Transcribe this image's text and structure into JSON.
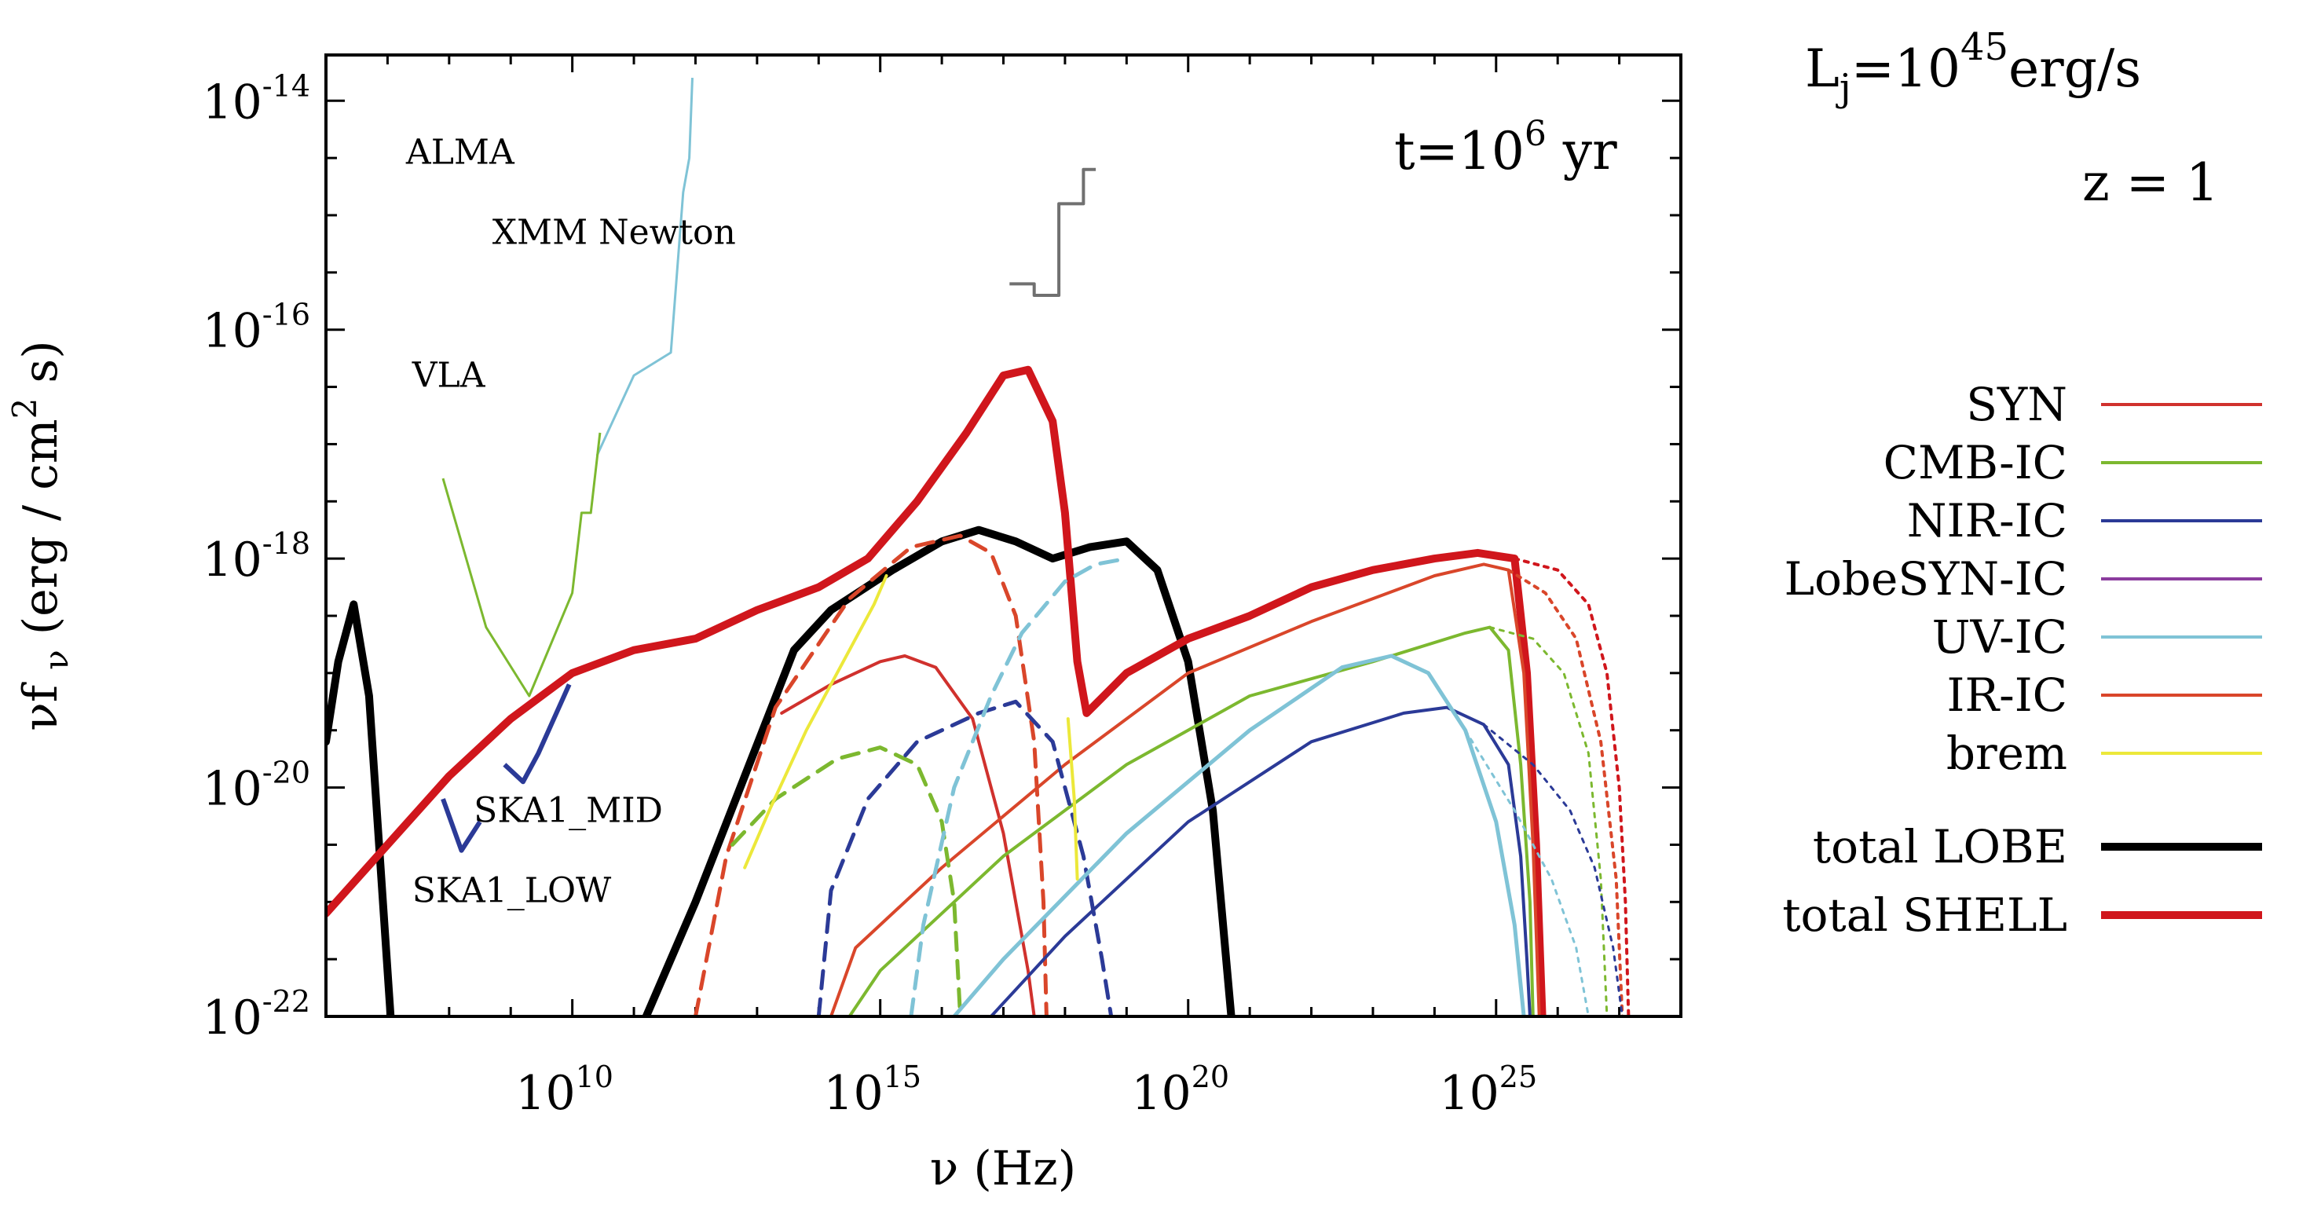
{
  "chart_data": {
    "type": "line",
    "xscale": "log",
    "yscale": "log",
    "xlabel": "ν (Hz)",
    "ylabel": "νf_ν (erg / cm^2 s)",
    "xlim_log10": [
      6,
      28
    ],
    "ylim_log10": [
      -22,
      -13.6
    ],
    "x_ticks": [
      {
        "log": 10,
        "base": "10",
        "exp": "10"
      },
      {
        "log": 15,
        "base": "10",
        "exp": "15"
      },
      {
        "log": 20,
        "base": "10",
        "exp": "20"
      },
      {
        "log": 25,
        "base": "10",
        "exp": "25"
      }
    ],
    "y_ticks": [
      {
        "log": -14,
        "base": "10",
        "exp": "-14"
      },
      {
        "log": -16,
        "base": "10",
        "exp": "-16"
      },
      {
        "log": -18,
        "base": "10",
        "exp": "-18"
      },
      {
        "log": -20,
        "base": "10",
        "exp": "-20"
      },
      {
        "log": -22,
        "base": "10",
        "exp": "-22"
      }
    ],
    "annotations": {
      "time": {
        "prefix": "t=10",
        "exp": "6",
        "suffix": " yr"
      },
      "luminosity": {
        "prefix": "L",
        "sub": "j",
        "mid": "=10",
        "exp": "45",
        "suffix": "erg/s"
      },
      "redshift": "z = 1"
    },
    "legend": [
      {
        "label": "SYN",
        "color": "#d0312d",
        "width": 4
      },
      {
        "label": "CMB-IC",
        "color": "#7cb82f",
        "width": 4
      },
      {
        "label": "NIR-IC",
        "color": "#2b3a97",
        "width": 4
      },
      {
        "label": "LobeSYN-IC",
        "color": "#8b3c9e",
        "width": 4
      },
      {
        "label": "UV-IC",
        "color": "#7fc3d6",
        "width": 4
      },
      {
        "label": "IR-IC",
        "color": "#d9462a",
        "width": 4
      },
      {
        "label": "brem",
        "color": "#ece83a",
        "width": 4
      },
      {
        "label": "total LOBE",
        "color": "#000000",
        "width": 10
      },
      {
        "label": "total SHELL",
        "color": "#d0161c",
        "width": 10
      }
    ],
    "instrument_labels": [
      {
        "text": "ALMA",
        "x": 7.3,
        "y": -14.55
      },
      {
        "text": "XMM Newton",
        "x": 8.7,
        "y": -15.25
      },
      {
        "text": "VLA",
        "x": 7.4,
        "y": -16.5
      },
      {
        "text": "SKA1_MID",
        "x": 8.4,
        "y": -20.3
      },
      {
        "text": "SKA1_LOW",
        "x": 7.4,
        "y": -21.0
      }
    ],
    "instruments": [
      {
        "name": "ALMA",
        "color": "#7fc3d6",
        "width": 3,
        "points": [
          [
            10.4,
            -17.1
          ],
          [
            11.0,
            -16.4
          ],
          [
            11.6,
            -16.2
          ],
          [
            11.8,
            -14.8
          ],
          [
            11.9,
            -14.5
          ],
          [
            11.95,
            -13.8
          ]
        ]
      },
      {
        "name": "VLA",
        "color": "#7cb82f",
        "width": 3,
        "points": [
          [
            7.9,
            -17.3
          ],
          [
            8.6,
            -18.6
          ],
          [
            9.3,
            -19.2
          ],
          [
            10.0,
            -18.3
          ],
          [
            10.15,
            -17.6
          ],
          [
            10.3,
            -17.6
          ],
          [
            10.45,
            -16.9
          ]
        ]
      },
      {
        "name": "XMM Newton",
        "color": "#707070",
        "width": 4,
        "points": [
          [
            17.1,
            -15.6
          ],
          [
            17.5,
            -15.6
          ],
          [
            17.5,
            -15.7
          ],
          [
            17.9,
            -15.7
          ],
          [
            17.9,
            -14.9
          ],
          [
            18.3,
            -14.9
          ],
          [
            18.3,
            -14.6
          ],
          [
            18.5,
            -14.6
          ]
        ]
      },
      {
        "name": "SKA1_MID",
        "color": "#2b3a97",
        "width": 6,
        "points": [
          [
            8.9,
            -19.8
          ],
          [
            9.2,
            -19.95
          ],
          [
            9.45,
            -19.7
          ],
          [
            9.95,
            -19.1
          ]
        ]
      },
      {
        "name": "SKA1_LOW",
        "color": "#2b3a97",
        "width": 6,
        "points": [
          [
            7.9,
            -20.1
          ],
          [
            8.2,
            -20.55
          ],
          [
            8.5,
            -20.3
          ]
        ]
      }
    ],
    "series": [
      {
        "name": "total LOBE low",
        "color": "#000000",
        "width": 10,
        "dash": "solid",
        "points": [
          [
            6.0,
            -19.6
          ],
          [
            6.2,
            -18.9
          ],
          [
            6.45,
            -18.4
          ],
          [
            6.7,
            -19.2
          ],
          [
            7.05,
            -22.0
          ]
        ]
      },
      {
        "name": "total LOBE",
        "color": "#000000",
        "width": 10,
        "dash": "solid",
        "points": [
          [
            11.2,
            -22.0
          ],
          [
            12.0,
            -21.0
          ],
          [
            12.8,
            -19.9
          ],
          [
            13.6,
            -18.8
          ],
          [
            14.2,
            -18.45
          ],
          [
            15.2,
            -18.1
          ],
          [
            16.0,
            -17.85
          ],
          [
            16.6,
            -17.75
          ],
          [
            17.2,
            -17.85
          ],
          [
            17.8,
            -18.0
          ],
          [
            18.4,
            -17.9
          ],
          [
            19.0,
            -17.85
          ],
          [
            19.5,
            -18.1
          ],
          [
            20.0,
            -18.9
          ],
          [
            20.4,
            -20.2
          ],
          [
            20.7,
            -22.0
          ]
        ]
      },
      {
        "name": "total SHELL",
        "color": "#d0161c",
        "width": 10,
        "dash": "solid",
        "points": [
          [
            6.0,
            -21.1
          ],
          [
            7.0,
            -20.5
          ],
          [
            8.0,
            -19.9
          ],
          [
            9.0,
            -19.4
          ],
          [
            10.0,
            -19.0
          ],
          [
            11.0,
            -18.8
          ],
          [
            12.0,
            -18.7
          ],
          [
            13.0,
            -18.45
          ],
          [
            14.0,
            -18.25
          ],
          [
            14.8,
            -18.0
          ],
          [
            15.6,
            -17.5
          ],
          [
            16.4,
            -16.9
          ],
          [
            17.0,
            -16.4
          ],
          [
            17.4,
            -16.35
          ],
          [
            17.8,
            -16.8
          ],
          [
            18.0,
            -17.6
          ],
          [
            18.2,
            -18.9
          ],
          [
            18.35,
            -19.35
          ],
          [
            19.0,
            -19.0
          ],
          [
            20.0,
            -18.7
          ],
          [
            21.0,
            -18.5
          ],
          [
            22.0,
            -18.25
          ],
          [
            23.0,
            -18.1
          ],
          [
            24.0,
            -18.0
          ],
          [
            24.7,
            -17.95
          ],
          [
            25.3,
            -18.0
          ],
          [
            25.5,
            -19.0
          ],
          [
            25.65,
            -20.5
          ],
          [
            25.75,
            -22.0
          ]
        ]
      },
      {
        "name": "total SHELL extrapolation",
        "color": "#d0161c",
        "width": 4,
        "dash": "dot",
        "points": [
          [
            25.3,
            -18.0
          ],
          [
            26.0,
            -18.1
          ],
          [
            26.5,
            -18.4
          ],
          [
            26.8,
            -19.0
          ],
          [
            27.0,
            -20.0
          ],
          [
            27.1,
            -21.0
          ],
          [
            27.15,
            -22.0
          ]
        ]
      },
      {
        "name": "SYN",
        "color": "#d0312d",
        "width": 4,
        "dash": "solid",
        "points": [
          [
            13.4,
            -19.35
          ],
          [
            14.2,
            -19.1
          ],
          [
            15.0,
            -18.9
          ],
          [
            15.4,
            -18.85
          ],
          [
            15.9,
            -18.95
          ],
          [
            16.5,
            -19.4
          ],
          [
            17.0,
            -20.4
          ],
          [
            17.4,
            -21.6
          ],
          [
            17.5,
            -22.0
          ]
        ]
      },
      {
        "name": "IR-IC high",
        "color": "#d9462a",
        "width": 4,
        "dash": "solid",
        "points": [
          [
            14.2,
            -22.0
          ],
          [
            14.6,
            -21.4
          ],
          [
            16.0,
            -20.7
          ],
          [
            18.0,
            -19.8
          ],
          [
            20.0,
            -19.0
          ],
          [
            22.0,
            -18.55
          ],
          [
            24.0,
            -18.15
          ],
          [
            24.8,
            -18.05
          ],
          [
            25.2,
            -18.1
          ],
          [
            25.45,
            -19.0
          ],
          [
            25.6,
            -20.5
          ],
          [
            25.7,
            -22.0
          ]
        ]
      },
      {
        "name": "IR-IC extrapolation",
        "color": "#d9462a",
        "width": 4,
        "dash": "dot",
        "points": [
          [
            25.2,
            -18.1
          ],
          [
            25.8,
            -18.3
          ],
          [
            26.3,
            -18.7
          ],
          [
            26.7,
            -19.6
          ],
          [
            26.95,
            -20.8
          ],
          [
            27.05,
            -22.0
          ]
        ]
      },
      {
        "name": "IR-IC low",
        "color": "#d9462a",
        "width": 5,
        "dash": "dash",
        "points": [
          [
            12.0,
            -22.0
          ],
          [
            12.5,
            -20.6
          ],
          [
            13.3,
            -19.3
          ],
          [
            14.5,
            -18.35
          ],
          [
            15.5,
            -17.9
          ],
          [
            16.3,
            -17.8
          ],
          [
            16.8,
            -17.95
          ],
          [
            17.2,
            -18.5
          ],
          [
            17.5,
            -19.6
          ],
          [
            17.65,
            -21.0
          ],
          [
            17.7,
            -22.0
          ]
        ]
      },
      {
        "name": "CMB-IC high",
        "color": "#7cb82f",
        "width": 4,
        "dash": "solid",
        "points": [
          [
            14.5,
            -22.0
          ],
          [
            15.0,
            -21.6
          ],
          [
            17.0,
            -20.6
          ],
          [
            19.0,
            -19.8
          ],
          [
            21.0,
            -19.2
          ],
          [
            23.0,
            -18.9
          ],
          [
            24.5,
            -18.65
          ],
          [
            24.9,
            -18.6
          ],
          [
            25.2,
            -18.8
          ],
          [
            25.4,
            -19.8
          ],
          [
            25.55,
            -21.0
          ],
          [
            25.6,
            -22.0
          ]
        ]
      },
      {
        "name": "CMB-IC extrapolation",
        "color": "#7cb82f",
        "width": 3,
        "dash": "dot",
        "points": [
          [
            24.9,
            -18.6
          ],
          [
            25.6,
            -18.7
          ],
          [
            26.1,
            -19.0
          ],
          [
            26.5,
            -19.7
          ],
          [
            26.7,
            -20.8
          ],
          [
            26.8,
            -22.0
          ]
        ]
      },
      {
        "name": "CMB-IC low",
        "color": "#7cb82f",
        "width": 5,
        "dash": "dash",
        "points": [
          [
            12.6,
            -20.5
          ],
          [
            13.3,
            -20.1
          ],
          [
            14.3,
            -19.75
          ],
          [
            15.0,
            -19.65
          ],
          [
            15.6,
            -19.8
          ],
          [
            16.0,
            -20.3
          ],
          [
            16.2,
            -21.0
          ],
          [
            16.3,
            -22.0
          ]
        ]
      },
      {
        "name": "NIR-IC high",
        "color": "#2b3a97",
        "width": 4,
        "dash": "solid",
        "points": [
          [
            16.8,
            -22.0
          ],
          [
            18.0,
            -21.3
          ],
          [
            20.0,
            -20.3
          ],
          [
            22.0,
            -19.6
          ],
          [
            23.5,
            -19.35
          ],
          [
            24.2,
            -19.3
          ],
          [
            24.8,
            -19.45
          ],
          [
            25.2,
            -19.8
          ],
          [
            25.4,
            -20.6
          ],
          [
            25.5,
            -21.5
          ],
          [
            25.55,
            -22.0
          ]
        ]
      },
      {
        "name": "NIR-IC extrapolation",
        "color": "#2b3a97",
        "width": 3,
        "dash": "dot",
        "points": [
          [
            24.8,
            -19.45
          ],
          [
            25.6,
            -19.8
          ],
          [
            26.2,
            -20.2
          ],
          [
            26.6,
            -20.7
          ],
          [
            26.9,
            -21.4
          ],
          [
            27.05,
            -22.0
          ]
        ]
      },
      {
        "name": "NIR-IC low",
        "color": "#2b3a97",
        "width": 5,
        "dash": "dash",
        "points": [
          [
            14.0,
            -22.0
          ],
          [
            14.2,
            -20.9
          ],
          [
            14.8,
            -20.1
          ],
          [
            15.6,
            -19.6
          ],
          [
            16.6,
            -19.35
          ],
          [
            17.2,
            -19.25
          ],
          [
            17.8,
            -19.6
          ],
          [
            18.3,
            -20.6
          ],
          [
            18.6,
            -21.5
          ],
          [
            18.75,
            -22.0
          ]
        ]
      },
      {
        "name": "UV-IC high",
        "color": "#7fc3d6",
        "width": 5,
        "dash": "solid",
        "points": [
          [
            16.2,
            -22.0
          ],
          [
            17.0,
            -21.5
          ],
          [
            19.0,
            -20.4
          ],
          [
            21.0,
            -19.5
          ],
          [
            22.5,
            -18.95
          ],
          [
            23.3,
            -18.85
          ],
          [
            23.9,
            -19.0
          ],
          [
            24.5,
            -19.5
          ],
          [
            25.0,
            -20.3
          ],
          [
            25.3,
            -21.2
          ],
          [
            25.45,
            -22.0
          ]
        ]
      },
      {
        "name": "UV-IC extrapolation",
        "color": "#7fc3d6",
        "width": 3,
        "dash": "dot",
        "points": [
          [
            24.5,
            -19.5
          ],
          [
            25.3,
            -20.2
          ],
          [
            25.9,
            -20.8
          ],
          [
            26.3,
            -21.4
          ],
          [
            26.5,
            -22.0
          ]
        ]
      },
      {
        "name": "UV-IC low",
        "color": "#7fc3d6",
        "width": 5,
        "dash": "dash",
        "points": [
          [
            15.5,
            -22.0
          ],
          [
            15.7,
            -21.2
          ],
          [
            16.2,
            -20.0
          ],
          [
            16.8,
            -19.2
          ],
          [
            17.3,
            -18.65
          ],
          [
            18.0,
            -18.2
          ],
          [
            18.5,
            -18.05
          ],
          [
            19.0,
            -18.0
          ]
        ]
      },
      {
        "name": "brem",
        "color": "#ece83a",
        "width": 4,
        "dash": "solid",
        "points": [
          [
            12.8,
            -20.7
          ],
          [
            13.2,
            -20.2
          ],
          [
            13.8,
            -19.5
          ],
          [
            14.4,
            -18.9
          ],
          [
            14.9,
            -18.4
          ],
          [
            15.1,
            -18.15
          ]
        ]
      },
      {
        "name": "brem high",
        "color": "#ece83a",
        "width": 4,
        "dash": "solid",
        "points": [
          [
            18.05,
            -19.4
          ],
          [
            18.15,
            -20.1
          ],
          [
            18.2,
            -20.8
          ]
        ]
      }
    ]
  }
}
